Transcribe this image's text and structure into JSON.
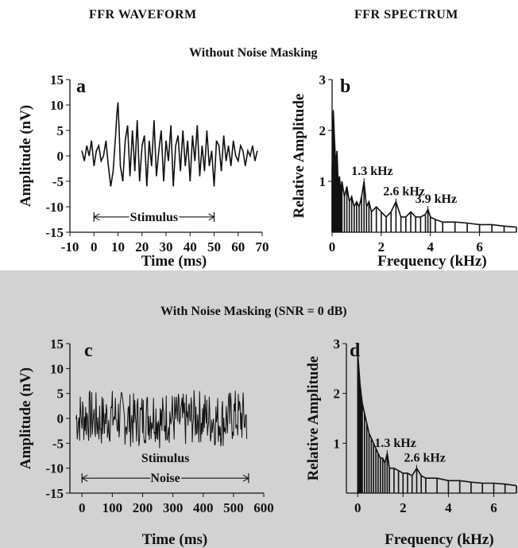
{
  "header": {
    "left": "FFR WAVEFORM",
    "right": "FFR SPECTRUM"
  },
  "sections": {
    "top": "Without  Noise Masking",
    "bottom": "With Noise Masking (SNR = 0 dB)"
  },
  "colors": {
    "trace": "#111111",
    "top_background": "#ffffff",
    "bottom_background": "#d2d2d2"
  },
  "chart_data": [
    {
      "id": "a",
      "type": "line",
      "panel_letter": "a",
      "xlabel": "Time (ms)",
      "ylabel": "Amplitude (nV)",
      "xlim": [
        -10,
        70
      ],
      "ylim": [
        -15,
        15
      ],
      "xticks": [
        "-10",
        "0",
        "10",
        "20",
        "30",
        "40",
        "50",
        "60",
        "70"
      ],
      "yticks": [
        "15",
        "10",
        "5",
        "0",
        "-5",
        "-10",
        "-15"
      ],
      "series": [
        {
          "x": [
            -5,
            -4,
            -3,
            -2,
            -1,
            0,
            1,
            2,
            3,
            4,
            5,
            6,
            7,
            8,
            9,
            9.5,
            10,
            10.5,
            11,
            12,
            13,
            14,
            15,
            16,
            17,
            18,
            19,
            20,
            21,
            22,
            23,
            24,
            25,
            26,
            27,
            28,
            29,
            30,
            31,
            32,
            33,
            34,
            35,
            36,
            37,
            38,
            39,
            40,
            41,
            42,
            43,
            44,
            45,
            46,
            47,
            48,
            49,
            50,
            51,
            52,
            53,
            54,
            55,
            56,
            57,
            58,
            59,
            60,
            61,
            62,
            63,
            64,
            65,
            66,
            67,
            68
          ],
          "y": [
            1,
            -1,
            2,
            0,
            3,
            -2,
            1,
            2,
            -1,
            0,
            3,
            -2,
            -6,
            -3,
            4,
            8,
            10.5,
            5,
            -2,
            -5,
            3,
            6,
            -4,
            5,
            -3,
            7,
            -5,
            2,
            4,
            -6,
            3,
            -2,
            7,
            -4,
            1,
            5,
            -5,
            3,
            -1,
            6,
            -6,
            2,
            4,
            -3,
            5,
            -2,
            3,
            -5,
            4,
            -1,
            6,
            -4,
            2,
            -3,
            5,
            -2,
            1,
            -6,
            3,
            2,
            -3,
            4,
            -1,
            2,
            -2,
            3,
            0,
            -1,
            2,
            1,
            -2,
            1,
            0,
            2,
            -1,
            1
          ]
        }
      ],
      "annotations": [
        {
          "text": "Stimulus",
          "x_start": 0,
          "x_end": 50,
          "y": -12
        }
      ]
    },
    {
      "id": "b",
      "type": "line",
      "panel_letter": "b",
      "xlabel": "Frequency (kHz)",
      "ylabel": "Relative Amplitude",
      "xlim": [
        0,
        7.5
      ],
      "ylim": [
        0,
        3
      ],
      "xticks": [
        "0",
        "2",
        "4",
        "6"
      ],
      "yticks": [
        "3",
        "2",
        "1"
      ],
      "series": [
        {
          "x": [
            0,
            0.05,
            0.1,
            0.15,
            0.2,
            0.25,
            0.3,
            0.35,
            0.4,
            0.5,
            0.6,
            0.7,
            0.8,
            0.9,
            1.0,
            1.1,
            1.2,
            1.3,
            1.4,
            1.5,
            1.6,
            1.8,
            2.0,
            2.2,
            2.4,
            2.6,
            2.8,
            3.0,
            3.2,
            3.4,
            3.6,
            3.8,
            3.9,
            4.0,
            4.2,
            4.5,
            5.0,
            5.5,
            6.0,
            6.5,
            7.0,
            7.5
          ],
          "y": [
            1.2,
            2.4,
            1.8,
            1.3,
            1.6,
            0.9,
            1.1,
            0.8,
            1.0,
            0.7,
            0.9,
            0.6,
            0.7,
            0.5,
            0.6,
            0.5,
            0.7,
            1.0,
            0.5,
            0.6,
            0.4,
            0.5,
            0.4,
            0.3,
            0.4,
            0.6,
            0.3,
            0.3,
            0.4,
            0.3,
            0.3,
            0.35,
            0.45,
            0.3,
            0.25,
            0.2,
            0.2,
            0.18,
            0.15,
            0.15,
            0.12,
            0.1
          ]
        }
      ],
      "annotations": [
        {
          "text": "1.3 kHz",
          "x": 1.3,
          "y": 1.0
        },
        {
          "text": "2.6 kHz",
          "x": 2.6,
          "y": 0.6
        },
        {
          "text": "3.9 kHz",
          "x": 3.9,
          "y": 0.45
        }
      ]
    },
    {
      "id": "c",
      "type": "line",
      "panel_letter": "c",
      "xlabel": "Time (ms)",
      "ylabel": "Amplitude (nV)",
      "xlim": [
        -40,
        600
      ],
      "ylim": [
        -15,
        15
      ],
      "xticks": [
        "0",
        "100",
        "200",
        "300",
        "400",
        "500",
        "600"
      ],
      "yticks": [
        "15",
        "10",
        "5",
        "0",
        "-5",
        "-10",
        "-15"
      ],
      "series": [
        {
          "x": [
            -20,
            20,
            60,
            100,
            140,
            180,
            220,
            240,
            260,
            280,
            300,
            340,
            380,
            420,
            460,
            500,
            540
          ],
          "y": [
            0,
            0.5,
            -0.5,
            0.5,
            0,
            -0.5,
            0.5,
            1,
            -1,
            0.5,
            0,
            -0.5,
            0.5,
            0,
            -0.5,
            0.5,
            0
          ]
        }
      ],
      "annotations": [
        {
          "text": "Stimulus",
          "x_start": 250,
          "x_end": 300,
          "y": -8
        },
        {
          "text": "Noise",
          "x_start": 0,
          "x_end": 550,
          "y": -12
        }
      ]
    },
    {
      "id": "d",
      "type": "line",
      "panel_letter": "d",
      "xlabel": "Frequency (kHz)",
      "ylabel": "Relative Amplitude",
      "xlim": [
        -0.5,
        7
      ],
      "ylim": [
        0,
        3
      ],
      "xticks": [
        "0",
        "2",
        "4",
        "6"
      ],
      "yticks": [
        "3",
        "2",
        "1"
      ],
      "series": [
        {
          "x": [
            0,
            0.05,
            0.1,
            0.15,
            0.2,
            0.3,
            0.4,
            0.5,
            0.6,
            0.7,
            0.8,
            0.9,
            1.0,
            1.1,
            1.2,
            1.3,
            1.4,
            1.6,
            1.8,
            2.0,
            2.2,
            2.4,
            2.6,
            2.8,
            3.0,
            3.5,
            4.0,
            4.5,
            5.0,
            5.5,
            6.0,
            6.5,
            7.0
          ],
          "y": [
            2.8,
            2.5,
            2.2,
            2.0,
            1.8,
            1.6,
            1.4,
            1.2,
            1.1,
            1.0,
            0.9,
            0.8,
            0.7,
            0.7,
            0.6,
            0.8,
            0.5,
            0.5,
            0.45,
            0.4,
            0.4,
            0.35,
            0.5,
            0.35,
            0.3,
            0.3,
            0.25,
            0.25,
            0.22,
            0.2,
            0.2,
            0.18,
            0.15
          ]
        }
      ],
      "annotations": [
        {
          "text": "1.3 kHz",
          "x": 1.3,
          "y": 0.8
        },
        {
          "text": "2.6 kHz",
          "x": 2.6,
          "y": 0.5
        }
      ]
    }
  ]
}
